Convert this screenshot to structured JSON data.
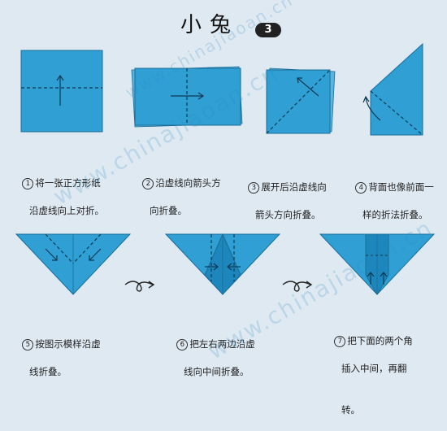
{
  "title": "小兔",
  "badge": "3",
  "watermark": "www.chinajiaoan.cn",
  "steps": [
    {
      "num": "1",
      "line1": "将一张正方形纸",
      "line2": "沿虚线向上对折。"
    },
    {
      "num": "2",
      "line1": "沿虚线向箭头方",
      "line2": "向折叠。"
    },
    {
      "num": "3",
      "line1": "展开后沿虚线向",
      "line2": "箭头方向折叠。"
    },
    {
      "num": "4",
      "line1": "背面也像前面一",
      "line2": "样的折法折叠。"
    },
    {
      "num": "5",
      "line1": "按图示模样沿虚",
      "line2": "线折叠。"
    },
    {
      "num": "6",
      "line1": "把左右两边沿虚",
      "line2": "线向中间折叠。"
    },
    {
      "num": "7",
      "line1": "把下面的两个角",
      "line2": "插入中间，再翻",
      "line3": "转。"
    }
  ],
  "colors": {
    "paper": "#2f9fd4",
    "paper_dark": "#1d86bd",
    "background": "#dfe9f2"
  }
}
